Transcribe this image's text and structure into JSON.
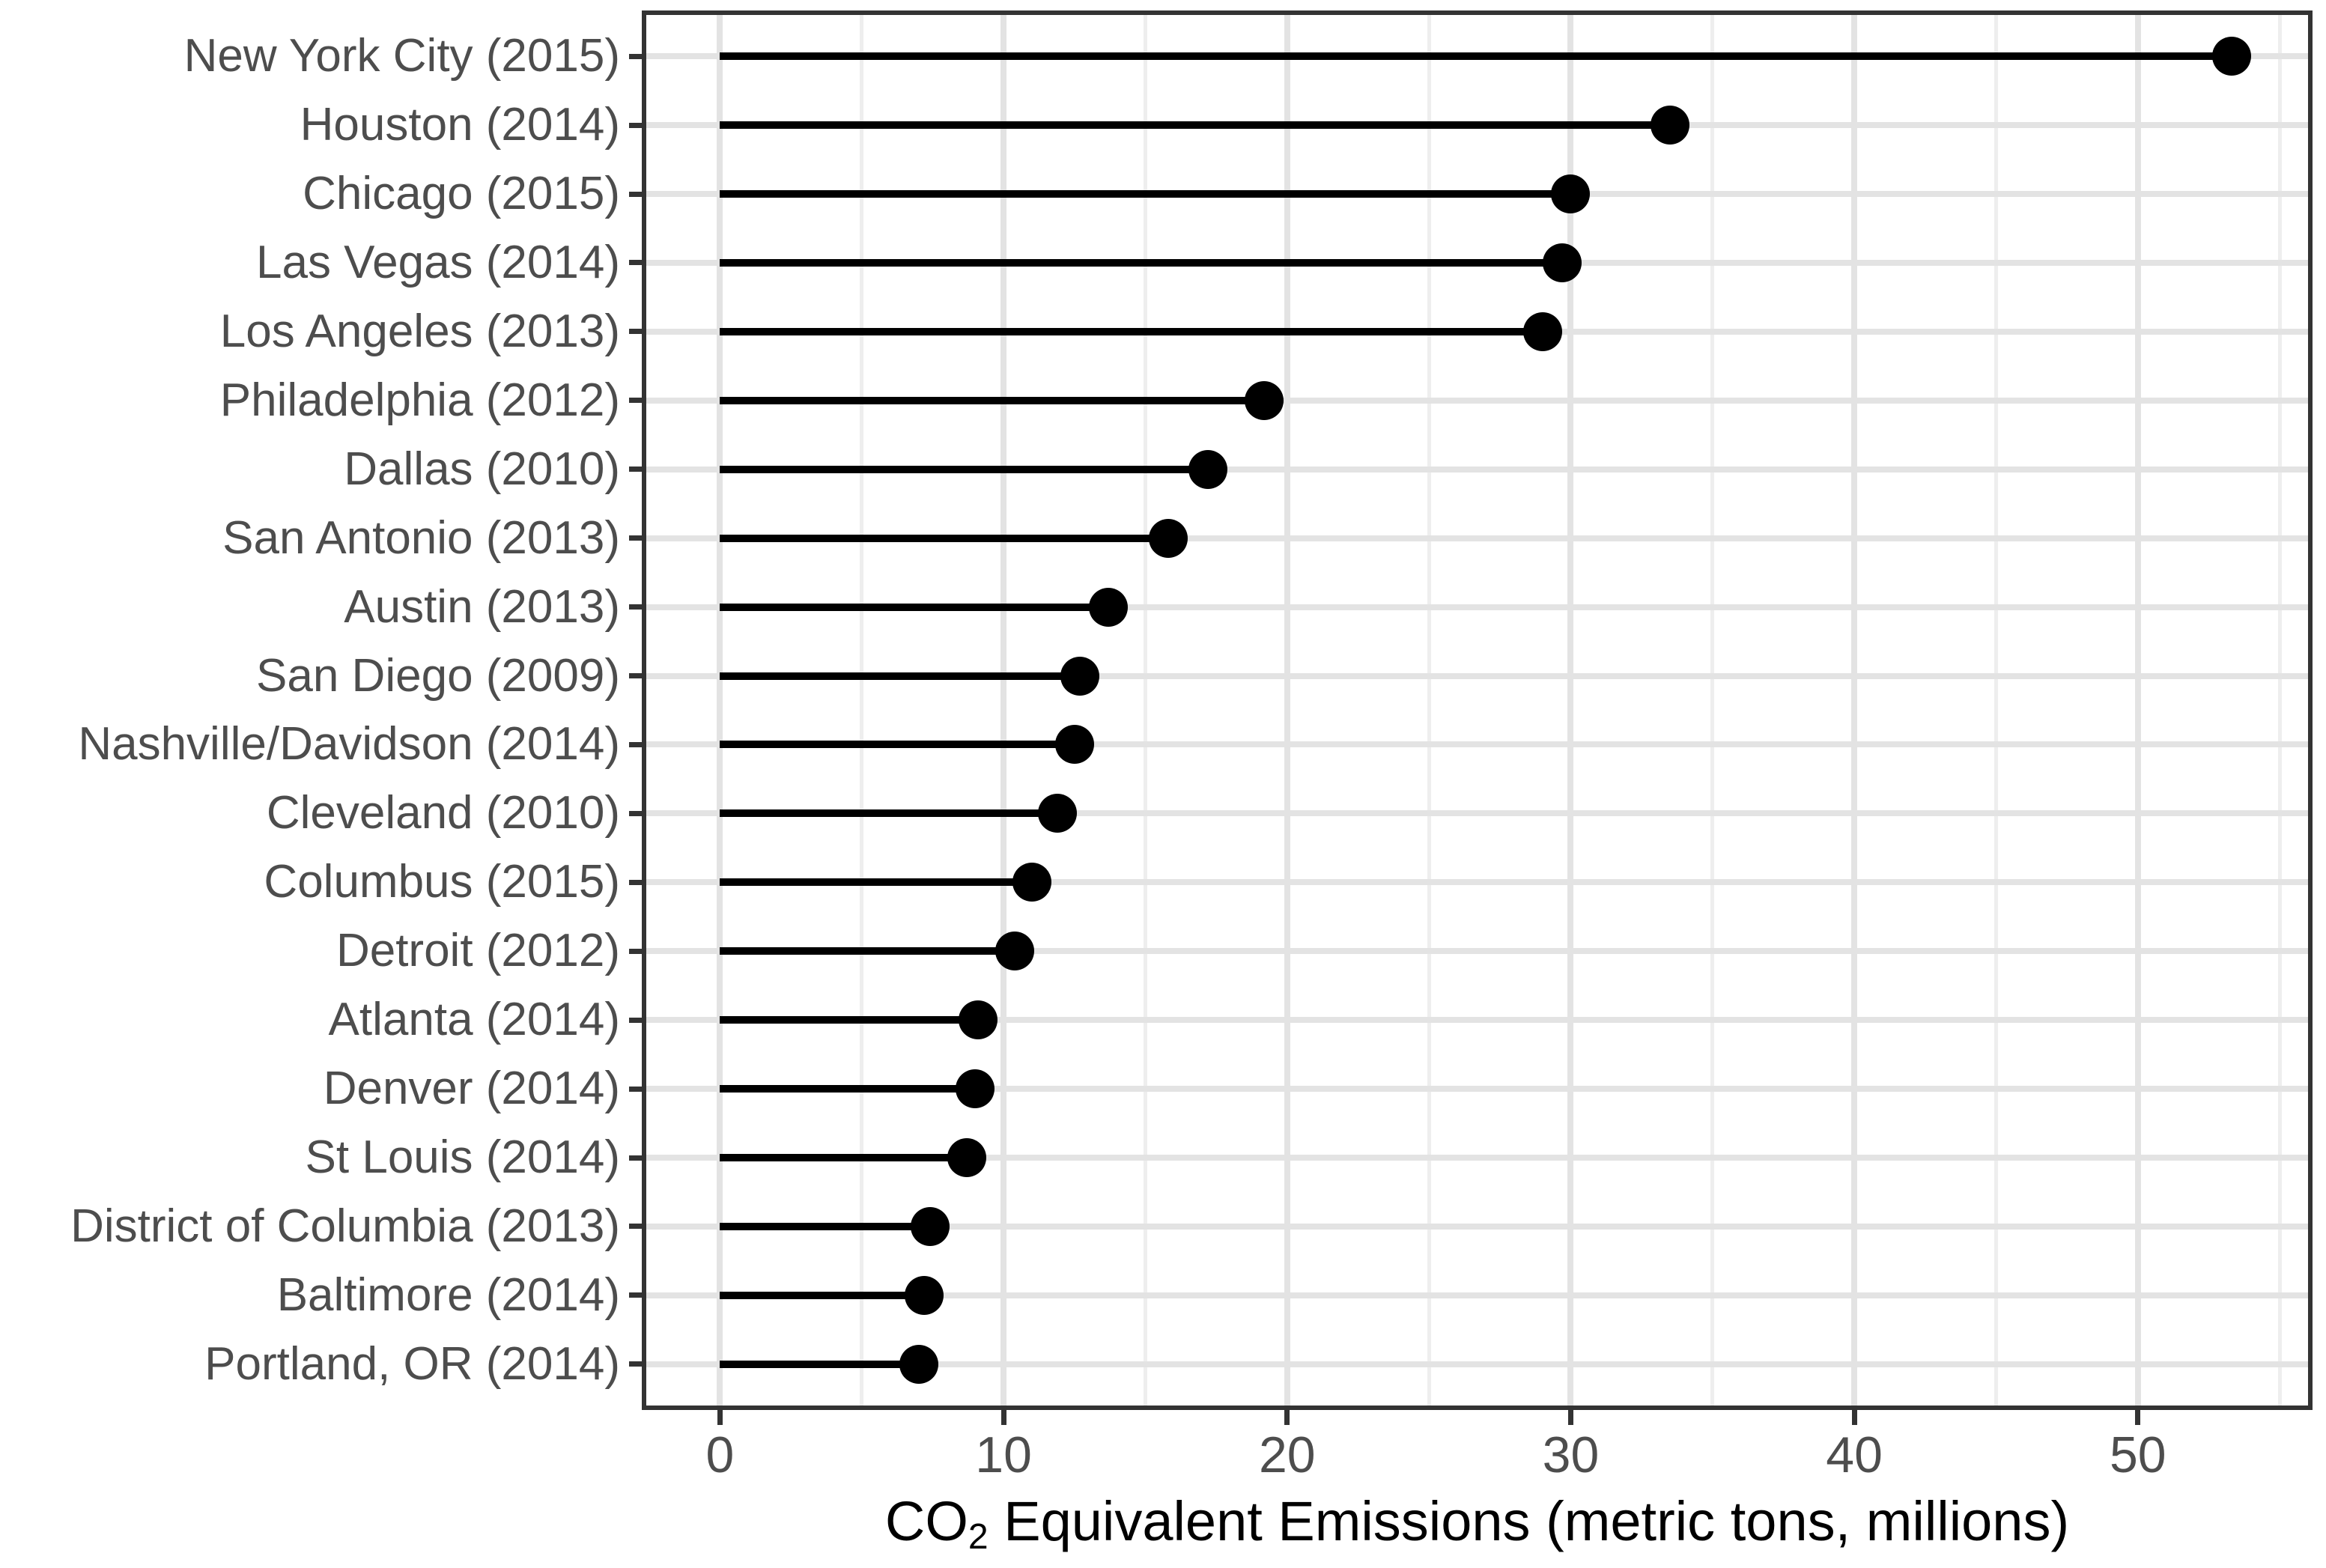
{
  "chart_data": {
    "type": "lollipop",
    "orientation": "horizontal",
    "title": "",
    "xlabel": "CO2 Equivalent Emissions (metric tons, millions)",
    "xlabel_parts": {
      "prefix": "CO",
      "subscript": "2",
      "suffix": " Equivalent Emissions (metric tons, millions)"
    },
    "ylabel": "",
    "categories": [
      "New York City (2015)",
      "Houston (2014)",
      "Chicago (2015)",
      "Las Vegas (2014)",
      "Los Angeles (2013)",
      "Philadelphia (2012)",
      "Dallas (2010)",
      "San Antonio (2013)",
      "Austin (2013)",
      "San Diego (2009)",
      "Nashville/Davidson (2014)",
      "Cleveland (2010)",
      "Columbus (2015)",
      "Detroit (2012)",
      "Atlanta (2014)",
      "Denver (2014)",
      "St Louis (2014)",
      "District of Columbia (2013)",
      "Baltimore (2014)",
      "Portland, OR (2014)"
    ],
    "values": [
      53.3,
      33.5,
      30.0,
      29.7,
      29.0,
      19.2,
      17.2,
      15.8,
      13.7,
      12.7,
      12.5,
      11.9,
      11.0,
      10.4,
      9.1,
      9.0,
      8.7,
      7.4,
      7.2,
      7.0
    ],
    "x_major_ticks": [
      0,
      10,
      20,
      30,
      40,
      50
    ],
    "x_tick_labels": [
      "0",
      "10",
      "20",
      "30",
      "40",
      "50"
    ],
    "x_minor_ticks": [
      5,
      15,
      25,
      35,
      45,
      55
    ],
    "xlim": [
      -2.6,
      56
    ],
    "stem_start": 0,
    "marker": "filled-circle",
    "grid": {
      "vertical": "major+minor",
      "horizontal": "major"
    },
    "legend": "none"
  },
  "style": {
    "background": "#ffffff",
    "dot_color": "#000000",
    "stem_color": "#000000",
    "axis_text_color": "#4d4d4d",
    "axis_title_color": "#000000",
    "panel_border_color": "#333333",
    "tick_color": "#333333",
    "grid_major_color": "#e3e3e3",
    "grid_minor_color": "#eeeeee"
  }
}
